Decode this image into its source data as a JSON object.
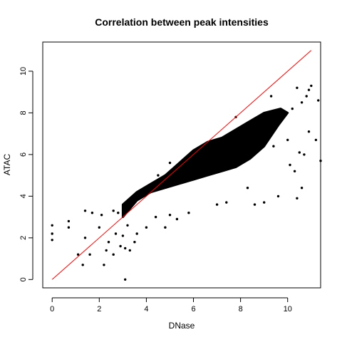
{
  "chart_data": {
    "type": "scatter",
    "title": "Correlation between peak intensities",
    "xlabel": "DNase",
    "ylabel": "ATAC",
    "xlim": [
      -0.4,
      11.4
    ],
    "ylim": [
      -0.4,
      11.4
    ],
    "xticks": [
      "0",
      "2",
      "4",
      "6",
      "8",
      "10"
    ],
    "yticks": [
      "0",
      "2",
      "4",
      "6",
      "8",
      "10"
    ],
    "grid": false,
    "point_color": "#000000",
    "reference_line": {
      "from": [
        0,
        0
      ],
      "to": [
        11,
        11
      ],
      "color": "#ff0000"
    },
    "dense_cloud": [
      [
        3.0,
        3.0
      ],
      [
        3.6,
        3.8
      ],
      [
        4.2,
        4.2
      ],
      [
        4.8,
        4.4
      ],
      [
        5.4,
        4.6
      ],
      [
        6.0,
        4.8
      ],
      [
        6.6,
        5.0
      ],
      [
        7.2,
        5.2
      ],
      [
        7.8,
        5.4
      ],
      [
        8.4,
        5.8
      ],
      [
        9.0,
        6.4
      ],
      [
        9.6,
        7.4
      ],
      [
        10.0,
        8.0
      ],
      [
        9.7,
        8.2
      ],
      [
        9.0,
        8.0
      ],
      [
        8.4,
        7.6
      ],
      [
        7.8,
        7.2
      ],
      [
        7.2,
        6.8
      ],
      [
        6.6,
        6.6
      ],
      [
        6.0,
        6.2
      ],
      [
        5.4,
        5.6
      ],
      [
        4.8,
        5.0
      ],
      [
        4.2,
        4.6
      ],
      [
        3.6,
        4.2
      ],
      [
        3.0,
        3.6
      ]
    ],
    "points": [
      [
        0,
        2.6
      ],
      [
        0,
        2.2
      ],
      [
        0,
        1.9
      ],
      [
        0.7,
        2.5
      ],
      [
        0.7,
        2.8
      ],
      [
        1.1,
        1.2
      ],
      [
        1.3,
        0.7
      ],
      [
        1.4,
        3.3
      ],
      [
        1.4,
        2.0
      ],
      [
        1.6,
        1.2
      ],
      [
        1.7,
        3.2
      ],
      [
        2.0,
        2.5
      ],
      [
        2.1,
        3.1
      ],
      [
        2.2,
        0.7
      ],
      [
        2.3,
        1.4
      ],
      [
        2.4,
        1.8
      ],
      [
        2.6,
        3.3
      ],
      [
        2.6,
        1.2
      ],
      [
        2.7,
        2.2
      ],
      [
        2.8,
        3.2
      ],
      [
        2.9,
        1.6
      ],
      [
        3.0,
        2.1
      ],
      [
        3.1,
        1.5
      ],
      [
        3.1,
        0.0
      ],
      [
        3.2,
        2.6
      ],
      [
        3.3,
        1.4
      ],
      [
        3.5,
        1.8
      ],
      [
        3.6,
        2.2
      ],
      [
        3.7,
        4.0
      ],
      [
        4.0,
        2.5
      ],
      [
        4.2,
        4.5
      ],
      [
        4.4,
        3.0
      ],
      [
        4.5,
        5.0
      ],
      [
        4.8,
        2.5
      ],
      [
        5.0,
        3.1
      ],
      [
        5.0,
        5.6
      ],
      [
        5.3,
        2.9
      ],
      [
        5.8,
        3.2
      ],
      [
        6.0,
        6.0
      ],
      [
        6.8,
        6.6
      ],
      [
        7.0,
        3.6
      ],
      [
        7.4,
        3.7
      ],
      [
        7.8,
        7.8
      ],
      [
        8.3,
        4.4
      ],
      [
        8.6,
        3.6
      ],
      [
        9.0,
        3.7
      ],
      [
        9.3,
        8.8
      ],
      [
        9.4,
        6.4
      ],
      [
        9.6,
        4.0
      ],
      [
        10.0,
        6.7
      ],
      [
        10.1,
        5.5
      ],
      [
        10.2,
        8.2
      ],
      [
        10.3,
        5.2
      ],
      [
        10.4,
        9.2
      ],
      [
        10.4,
        3.9
      ],
      [
        10.5,
        6.1
      ],
      [
        10.6,
        8.5
      ],
      [
        10.6,
        4.4
      ],
      [
        10.7,
        6.0
      ],
      [
        10.8,
        8.8
      ],
      [
        10.9,
        7.1
      ],
      [
        10.9,
        9.1
      ],
      [
        11.0,
        9.3
      ],
      [
        11.2,
        6.7
      ],
      [
        11.3,
        8.6
      ],
      [
        11.4,
        5.7
      ]
    ]
  }
}
